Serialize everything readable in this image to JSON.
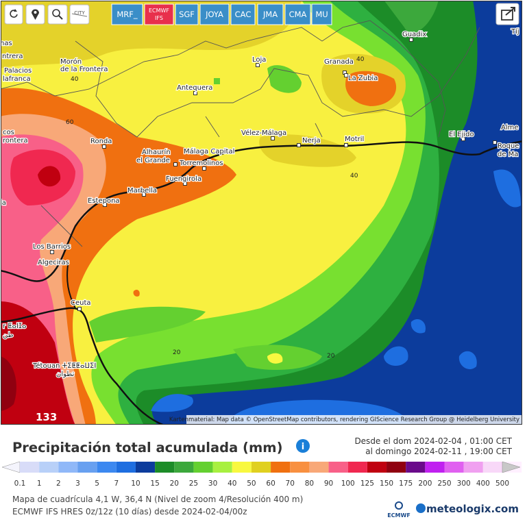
{
  "toolbar": {
    "city": "CITY",
    "models": [
      {
        "label": "MRF_"
      },
      {
        "label": "ECMWF",
        "sub": "IFS"
      },
      {
        "label": "SGF"
      },
      {
        "label": "JOYA"
      },
      {
        "label": "CAC"
      },
      {
        "label": "JMA"
      },
      {
        "label": "CMA"
      },
      {
        "label": "MU"
      }
    ]
  },
  "map": {
    "places": [
      "nas",
      "ntrera",
      "Palacios",
      "lafranca",
      "Morón",
      "de la Frontera",
      "Loja",
      "Granada",
      "La Zubia",
      "Guadix",
      "Tíj",
      "Antequera",
      "cos",
      "rontera",
      "Vélez-Málaga",
      "Nerja",
      "Motril",
      "El Ejido",
      "Alme",
      "Roque",
      "de Ma",
      "Ronda",
      "Alhaurín",
      "el Grande",
      "Málaga Capital",
      "Torremolinos",
      "Fuengirola",
      "Marbella",
      "Estepona",
      "ia",
      "Los Barrios",
      "Algeciras",
      "Ceuta",
      "r ⵟⴰⵏⵊⴰ",
      "طن",
      "Tétouan ⵜⵉⵟⵟⴰⵡⵉⵏ",
      "تطوان"
    ],
    "contour_labels": [
      "40",
      "60",
      "40",
      "40",
      "20",
      "20"
    ],
    "max_label": "133",
    "attribution": "Kartenmaterial: Map data © OpenStreetMap contributors, rendering GIScience Research Group @ Heidelberg University"
  },
  "title": "Precipitación total acumulada (mm)",
  "period": {
    "from": "Desde el dom 2024-02-04 , 01:00 CET",
    "to": "al domingo 2024-02-11 , 19:00 CET"
  },
  "legend": {
    "labels": [
      "0.1",
      "1",
      "2",
      "3",
      "5",
      "7",
      "10",
      "15",
      "20",
      "25",
      "30",
      "40",
      "50",
      "60",
      "70",
      "80",
      "90",
      "100",
      "125",
      "150",
      "175",
      "200",
      "250",
      "300",
      "400",
      "500"
    ],
    "colors": [
      "#f4f4fc",
      "#d8dcf8",
      "#b8d0f8",
      "#90b8f8",
      "#68a0f0",
      "#3c88f0",
      "#1e6ee0",
      "#0c3c9c",
      "#1c8c28",
      "#3ca83c",
      "#64d030",
      "#a8f040",
      "#f8f840",
      "#e0d020",
      "#f07010",
      "#f89040",
      "#f8a878",
      "#f86088",
      "#f02850",
      "#c00010",
      "#900010",
      "#6a0a8a",
      "#c020f0",
      "#e060f0",
      "#f0a0f0",
      "#f8d8f8",
      "#fff0ff",
      "#c8c8c8"
    ]
  },
  "footer": {
    "grid": "Mapa de cuadrícula 4,1 W, 36,4 N (Nivel de zoom 4/Resolución 400 m)",
    "model": "ECMWF IFS HRES 0z/12z (10 días) desde 2024-02-04/00z",
    "logo": "ECMWF",
    "brand": "meteologix.com"
  }
}
